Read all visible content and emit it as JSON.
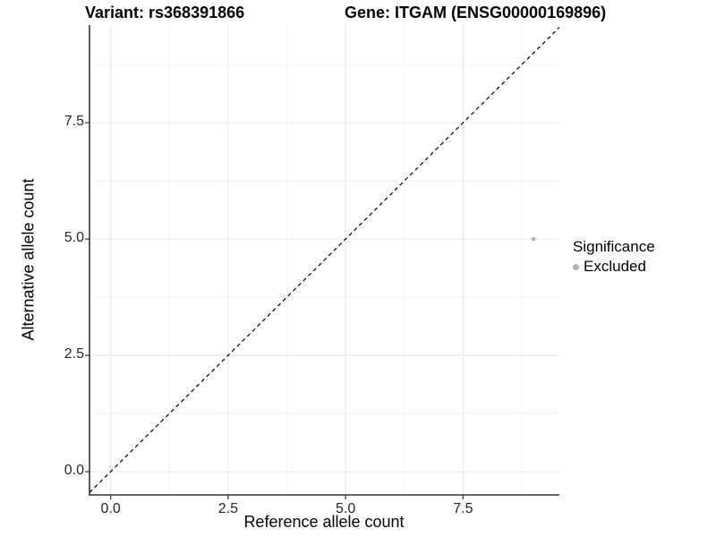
{
  "titles": {
    "variant": "Variant: rs368391866",
    "gene": "Gene: ITGAM (ENSG00000169896)"
  },
  "axes": {
    "x_label": "Reference allele count",
    "y_label": "Alternative allele count"
  },
  "legend": {
    "title": "Significance",
    "entries": [
      {
        "label": "Excluded",
        "color": "#b0b0b0"
      }
    ]
  },
  "chart_data": {
    "type": "scatter",
    "title": "Variant: rs368391866  |  Gene: ITGAM (ENSG00000169896)",
    "xlabel": "Reference allele count",
    "ylabel": "Alternative allele count",
    "xlim": [
      -0.45,
      9.55
    ],
    "ylim": [
      -0.5,
      9.6
    ],
    "x_ticks": [
      0.0,
      2.5,
      5.0,
      7.5
    ],
    "y_ticks": [
      0.0,
      2.5,
      5.0,
      7.5
    ],
    "minor_x": [
      1.25,
      3.75,
      6.25,
      8.75
    ],
    "minor_y": [
      1.25,
      3.75,
      6.25,
      8.75
    ],
    "tick_decimals": 1,
    "grid": {
      "major": true,
      "minor": true
    },
    "series": [
      {
        "name": "Excluded",
        "color": "#b0b0b0",
        "point_radius": 2.2,
        "points": [
          {
            "x": 9,
            "y": 5
          }
        ]
      }
    ],
    "reference_line": {
      "style": "dashed",
      "slope": 1,
      "intercept": 0,
      "color": "#000000"
    },
    "legend": {
      "title": "Significance",
      "position": "right",
      "entries": [
        "Excluded"
      ]
    },
    "colors": {
      "background": "#ffffff",
      "grid_major": "#e6e6e6",
      "grid_minor": "#f3f3f3",
      "axis": "#333333",
      "point": "#b0b0b0"
    }
  }
}
